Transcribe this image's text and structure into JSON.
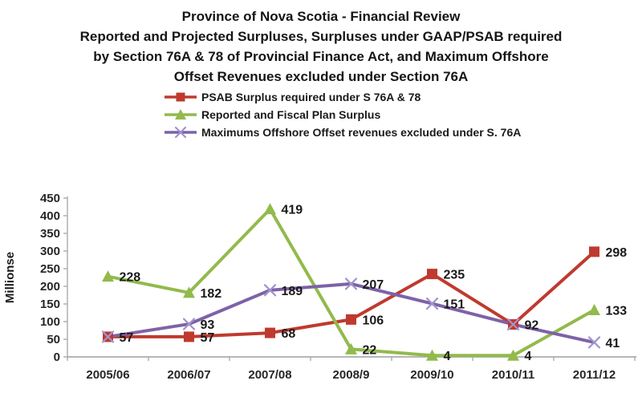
{
  "title": {
    "lines": [
      "Province of Nova Scotia - Financial Review",
      "Reported and Projected Surpluses, Surpluses under GAAP/PSAB required",
      "by Section 76A & 78 of Provincial Finance Act, and Maximum Offshore",
      "Offset Revenues excluded under Section 76A"
    ]
  },
  "chart_data": {
    "type": "line",
    "categories": [
      "2005/06",
      "2006/07",
      "2007/08",
      "2008/9",
      "2009/10",
      "2010/11",
      "2011/12"
    ],
    "series": [
      {
        "name": "PSAB Surplus required under S 76A & 78",
        "values": [
          57,
          57,
          68,
          106,
          235,
          92,
          298
        ],
        "point_labels": [
          "57",
          "57",
          "68",
          "106",
          "235",
          "92",
          "298"
        ],
        "color": "#BF3A2E",
        "marker": "square",
        "marker_color": "#BF3A2E"
      },
      {
        "name": "Reported and Fiscal Plan Surplus",
        "values": [
          228,
          182,
          419,
          22,
          4,
          4,
          133
        ],
        "point_labels": [
          "228",
          "182",
          "419",
          "22",
          "4",
          "4",
          "133"
        ],
        "color": "#92BA4C",
        "marker": "triangle",
        "marker_color": "#92BA4C"
      },
      {
        "name": "Maximums Offshore Offset revenues excluded under S. 76A",
        "values": [
          57,
          93,
          189,
          207,
          151,
          92,
          41
        ],
        "point_labels": [
          null,
          "93",
          "189",
          "207",
          "151",
          null,
          "41"
        ],
        "color": "#7D62A8",
        "marker": "x",
        "marker_color": "#A294CC"
      }
    ],
    "ylabel": "Millionse",
    "ylim": [
      0,
      450
    ],
    "ytick_step": 50,
    "legend_position": "top-left-of-plot",
    "grid": false,
    "label_color": "#1a1a1a",
    "axis_color": "#ABABAB"
  }
}
